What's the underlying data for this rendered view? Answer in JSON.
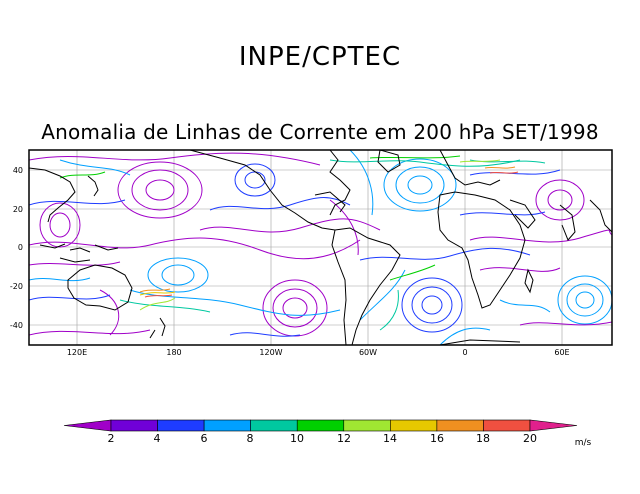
{
  "header": {
    "title": "INPE/CPTEC",
    "subtitle": "Anomalia de Linhas de Corrente em 200 hPa SET/1998"
  },
  "map": {
    "lat_ticks": [
      "40",
      "20",
      "0",
      "-20",
      "-40"
    ],
    "lon_ticks": [
      "120E",
      "180",
      "120W",
      "60W",
      "0",
      "60E"
    ]
  },
  "colorbar": {
    "labels": [
      "2",
      "4",
      "6",
      "8",
      "10",
      "12",
      "14",
      "16",
      "18",
      "20"
    ],
    "unit": "m/s",
    "colors": [
      "#a000c8",
      "#7000d8",
      "#1e3cff",
      "#00a0ff",
      "#00c8a0",
      "#00d000",
      "#a0e632",
      "#e6c800",
      "#f09020",
      "#f05040",
      "#e0208c"
    ]
  },
  "colors": {
    "streamline_purple": "#a000c8",
    "streamline_blue": "#1e3cff",
    "streamline_cyan": "#00a0ff",
    "streamline_teal": "#00c8a0",
    "streamline_green": "#00d000",
    "coast": "#000000",
    "grid": "#999999"
  }
}
